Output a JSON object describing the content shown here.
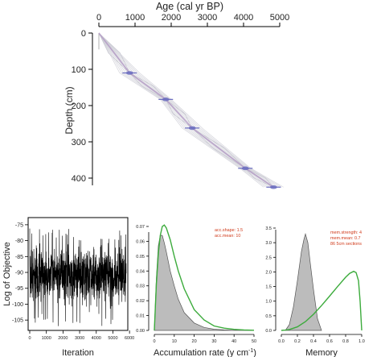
{
  "chart_data": [
    {
      "type": "line",
      "panel": "age-depth",
      "xlabel": "Age (cal yr BP)",
      "ylabel": "Depth (cm)",
      "xlim": [
        0,
        5000
      ],
      "ylim": [
        0,
        430
      ],
      "x_ticks": [
        "0",
        "1000",
        "2000",
        "3000",
        "4000",
        "5000"
      ],
      "y_ticks": [
        "0",
        "100",
        "200",
        "300",
        "400"
      ],
      "series": [
        {
          "role": "mean age-depth model",
          "color": "#b9a4c9",
          "x": [
            0,
            850,
            1850,
            2580,
            4050,
            4830
          ],
          "y": [
            0,
            110,
            183,
            262,
            373,
            425
          ]
        }
      ],
      "dated_levels": [
        {
          "age": 850,
          "depth": 110
        },
        {
          "age": 1850,
          "depth": 183
        },
        {
          "age": 2580,
          "depth": 262
        },
        {
          "age": 4050,
          "depth": 373
        },
        {
          "age": 4830,
          "depth": 425
        }
      ],
      "colors": {
        "dates": "#6c6ec0",
        "envelope": "#c9c9d2"
      }
    },
    {
      "type": "line",
      "panel": "iteration-history",
      "xlabel": "Iteration",
      "ylabel": "Log of Objective",
      "xlim": [
        0,
        5800
      ],
      "ylim": [
        -108,
        -73
      ],
      "x_ticks": [
        "0",
        "1000",
        "2000",
        "3000",
        "4000",
        "5000",
        "6000"
      ],
      "y_ticks": [
        "-75",
        "-80",
        "-85",
        "-90",
        "-95",
        "-100",
        "-105"
      ],
      "series": [
        {
          "mean": -91,
          "spread": 5,
          "min": -107,
          "max": -76,
          "color": "#000000"
        }
      ]
    },
    {
      "type": "area",
      "panel": "accumulation-rate",
      "xlabel": "Accumulation rate (y cm",
      "xlabel_sup": "-1",
      "xlabel_close": ")",
      "xlim": [
        0,
        50
      ],
      "ylim": [
        0,
        0.07
      ],
      "x_ticks": [
        "0",
        "10",
        "20",
        "30",
        "40",
        "50"
      ],
      "y_ticks": [
        "0.00",
        "0.01",
        "0.02",
        "0.03",
        "0.04",
        "0.05",
        "0.06",
        "0.07"
      ],
      "annotations": [
        "acc.shape: 1.5",
        "acc.mean: 10"
      ],
      "series": [
        {
          "role": "prior",
          "color": "#3cab3c",
          "x": [
            0,
            1,
            2,
            3,
            4,
            5,
            6,
            8,
            10,
            12,
            15,
            20,
            25,
            30,
            35,
            40,
            45,
            50
          ],
          "y": [
            0,
            0.031,
            0.052,
            0.064,
            0.07,
            0.071,
            0.069,
            0.061,
            0.05,
            0.04,
            0.028,
            0.014,
            0.007,
            0.003,
            0.0015,
            0.0007,
            0.0003,
            0.0001
          ]
        },
        {
          "role": "posterior",
          "color": "#bcbcbc",
          "x": [
            0,
            1,
            2,
            3,
            4,
            5,
            6,
            8,
            10,
            12,
            15,
            20,
            25,
            30,
            35,
            40,
            45,
            50
          ],
          "y": [
            0,
            0.035,
            0.057,
            0.064,
            0.064,
            0.059,
            0.053,
            0.04,
            0.03,
            0.021,
            0.012,
            0.005,
            0.002,
            0.0008,
            0.0003,
            0.0001,
            0,
            0
          ]
        }
      ]
    },
    {
      "type": "area",
      "panel": "memory",
      "xlabel": "Memory",
      "xlim": [
        0,
        1
      ],
      "ylim": [
        0,
        3.6
      ],
      "x_ticks": [
        "0.0",
        "0.2",
        "0.4",
        "0.6",
        "0.8",
        "1.0"
      ],
      "y_ticks": [
        "0.0",
        "0.5",
        "1.0",
        "1.5",
        "2.0",
        "2.5",
        "3.0",
        "3.5"
      ],
      "annotations": [
        "mem.strength: 4",
        "mem.mean: 0.7",
        "86 5cm sections"
      ],
      "series": [
        {
          "role": "prior",
          "color": "#3cab3c",
          "x": [
            0,
            0.05,
            0.1,
            0.2,
            0.3,
            0.4,
            0.5,
            0.6,
            0.7,
            0.8,
            0.85,
            0.9,
            0.93,
            0.96,
            0.98,
            1.0
          ],
          "y": [
            0,
            0.01,
            0.03,
            0.12,
            0.3,
            0.55,
            0.85,
            1.17,
            1.5,
            1.82,
            1.95,
            2.02,
            1.98,
            1.7,
            1.0,
            0
          ]
        },
        {
          "role": "posterior",
          "color": "#bcbcbc",
          "x": [
            0.05,
            0.1,
            0.15,
            0.2,
            0.25,
            0.28,
            0.3,
            0.33,
            0.36,
            0.4,
            0.45,
            0.5
          ],
          "y": [
            0,
            0.2,
            0.8,
            1.7,
            2.7,
            3.1,
            3.3,
            3.0,
            2.3,
            1.4,
            0.4,
            0
          ]
        }
      ]
    }
  ]
}
